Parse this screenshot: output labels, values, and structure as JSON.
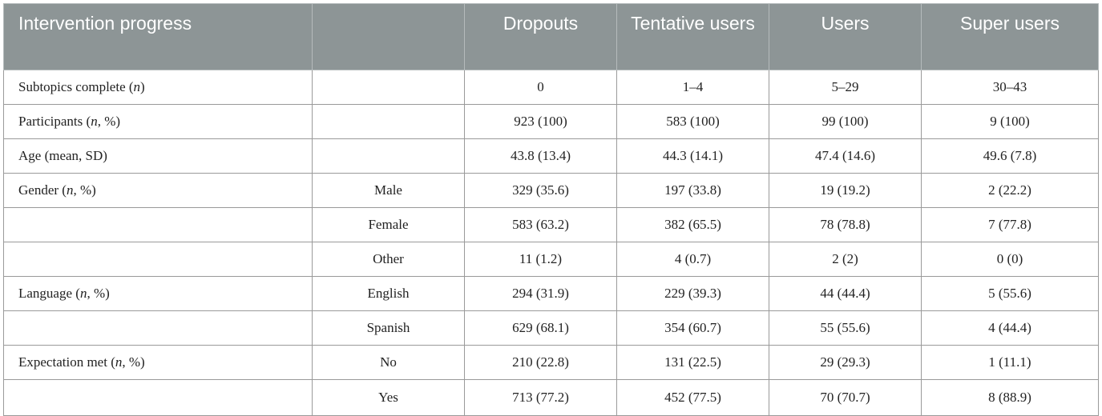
{
  "table": {
    "headers": [
      "Intervention progress",
      "",
      "Dropouts",
      "Tentative users",
      "Users",
      "Super users"
    ],
    "rows": [
      {
        "label": "Subtopics complete",
        "label_italic": "n",
        "label_suffix": "",
        "sub": "",
        "values": [
          "0",
          "1–4",
          "5–29",
          "30–43"
        ]
      },
      {
        "label": "Participants",
        "label_italic": "n",
        "label_suffix": ", %",
        "sub": "",
        "values": [
          "923 (100)",
          "583 (100)",
          "99 (100)",
          "9 (100)"
        ]
      },
      {
        "label": "Age (mean, SD)",
        "label_italic": "",
        "label_suffix": "",
        "sub": "",
        "values": [
          "43.8 (13.4)",
          "44.3 (14.1)",
          "47.4 (14.6)",
          "49.6 (7.8)"
        ]
      },
      {
        "label": "Gender",
        "label_italic": "n",
        "label_suffix": ", %",
        "sub": "Male",
        "values": [
          "329 (35.6)",
          "197 (33.8)",
          "19 (19.2)",
          "2 (22.2)"
        ]
      },
      {
        "label": "",
        "label_italic": "",
        "label_suffix": "",
        "sub": "Female",
        "values": [
          "583 (63.2)",
          "382 (65.5)",
          "78 (78.8)",
          "7 (77.8)"
        ]
      },
      {
        "label": "",
        "label_italic": "",
        "label_suffix": "",
        "sub": "Other",
        "values": [
          "11 (1.2)",
          "4 (0.7)",
          "2 (2)",
          "0 (0)"
        ]
      },
      {
        "label": "Language",
        "label_italic": "n",
        "label_suffix": ", %",
        "sub": "English",
        "values": [
          "294 (31.9)",
          "229 (39.3)",
          "44 (44.4)",
          "5 (55.6)"
        ]
      },
      {
        "label": "",
        "label_italic": "",
        "label_suffix": "",
        "sub": "Spanish",
        "values": [
          "629 (68.1)",
          "354 (60.7)",
          "55 (55.6)",
          "4 (44.4)"
        ]
      },
      {
        "label": "Expectation met",
        "label_italic": "n",
        "label_suffix": ", %",
        "sub": "No",
        "values": [
          "210 (22.8)",
          "131 (22.5)",
          "29 (29.3)",
          "1 (11.1)"
        ]
      },
      {
        "label": "",
        "label_italic": "",
        "label_suffix": "",
        "sub": "Yes",
        "values": [
          "713 (77.2)",
          "452 (77.5)",
          "70 (70.7)",
          "8 (88.9)"
        ]
      }
    ]
  }
}
